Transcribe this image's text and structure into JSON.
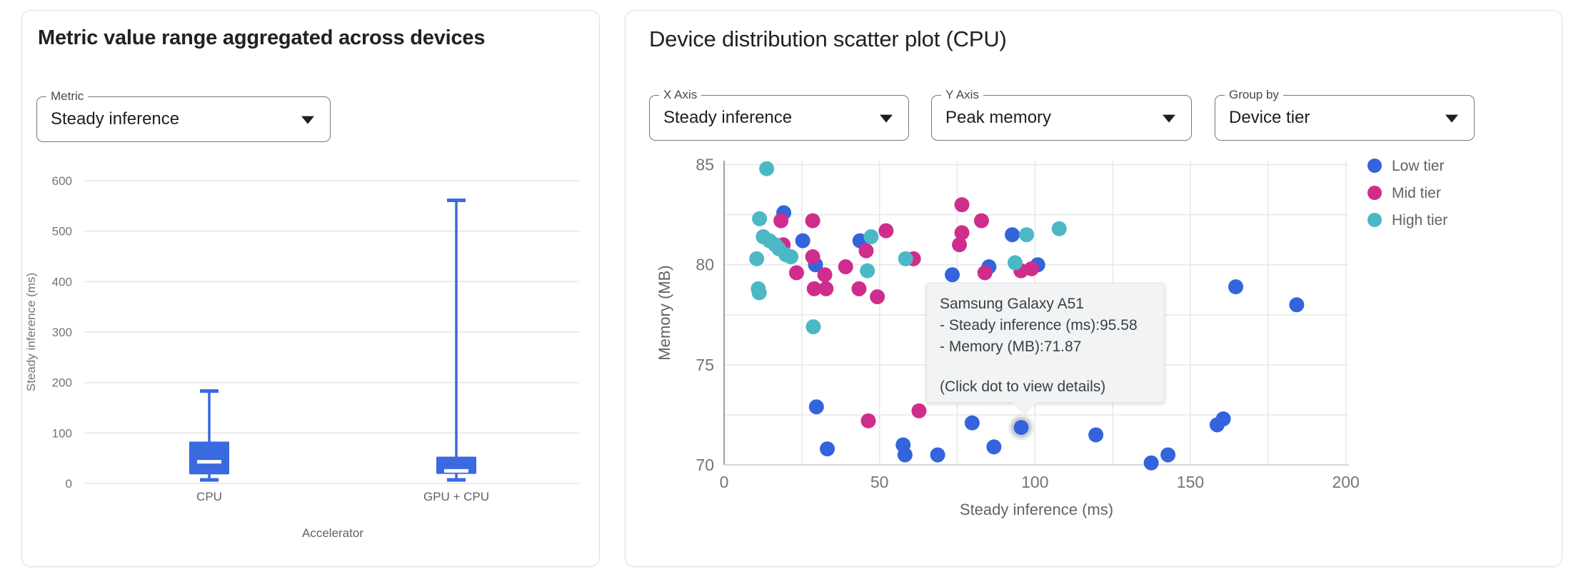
{
  "left_panel": {
    "title": "Metric value range aggregated across devices",
    "metric_select": {
      "label": "Metric",
      "value": "Steady inference"
    },
    "chart_data": {
      "type": "boxplot",
      "categories": [
        "CPU",
        "GPU + CPU"
      ],
      "xlabel": "Accelerator",
      "ylabel": "Steady inference (ms)",
      "yticks": [
        0,
        100,
        200,
        300,
        400,
        500,
        600
      ],
      "ylim": [
        0,
        600
      ],
      "grid": true,
      "box_color": "#3a69e0",
      "series": [
        {
          "category": "CPU",
          "min": 7,
          "q1": 18,
          "median": 43,
          "q3": 83,
          "max": 183
        },
        {
          "category": "GPU + CPU",
          "min": 7,
          "q1": 19,
          "median": 25,
          "q3": 53,
          "max": 561
        }
      ]
    }
  },
  "right_panel": {
    "title": "Device distribution scatter plot (CPU)",
    "x_axis_select": {
      "label": "X Axis",
      "value": "Steady inference"
    },
    "y_axis_select": {
      "label": "Y Axis",
      "value": "Peak memory"
    },
    "group_by_select": {
      "label": "Group by",
      "value": "Device tier"
    },
    "chart_data": {
      "type": "scatter",
      "xlabel": "Steady inference (ms)",
      "ylabel": "Memory (MB)",
      "xticks": [
        0,
        50,
        100,
        150,
        200
      ],
      "yticks": [
        70,
        75,
        80,
        85
      ],
      "xlim": [
        0,
        201
      ],
      "ylim": [
        70,
        85.2
      ],
      "minor_grid_x": 25,
      "minor_grid_y": 2.5,
      "grid": true,
      "legend_position": "right",
      "series": [
        {
          "name": "Low tier",
          "color": "#3464dc",
          "points": [
            [
              19.2,
              82.6
            ],
            [
              25.3,
              81.2
            ],
            [
              43.7,
              81.2
            ],
            [
              29.4,
              80.0
            ],
            [
              92.7,
              81.5
            ],
            [
              100.9,
              80.0
            ],
            [
              85.2,
              79.9
            ],
            [
              73.4,
              79.5
            ],
            [
              164.6,
              78.9
            ],
            [
              184.2,
              78.0
            ],
            [
              29.7,
              72.9
            ],
            [
              33.2,
              70.8
            ],
            [
              57.6,
              71.0
            ],
            [
              58.2,
              70.5
            ],
            [
              68.7,
              70.5
            ],
            [
              79.8,
              72.1
            ],
            [
              95.58,
              71.87
            ],
            [
              86.8,
              70.9
            ],
            [
              119.6,
              71.5
            ],
            [
              137.4,
              70.1
            ],
            [
              142.8,
              70.5
            ],
            [
              158.6,
              72.0
            ],
            [
              160.6,
              72.3
            ]
          ]
        },
        {
          "name": "Mid tier",
          "color": "#cf2d8c",
          "points": [
            [
              18.3,
              82.2
            ],
            [
              28.5,
              82.2
            ],
            [
              19.0,
              81.0
            ],
            [
              28.5,
              80.4
            ],
            [
              23.3,
              79.6
            ],
            [
              32.4,
              79.5
            ],
            [
              29.0,
              78.8
            ],
            [
              32.8,
              78.8
            ],
            [
              39.1,
              79.9
            ],
            [
              45.7,
              80.7
            ],
            [
              52.1,
              81.7
            ],
            [
              43.4,
              78.8
            ],
            [
              49.3,
              78.4
            ],
            [
              60.9,
              80.3
            ],
            [
              76.5,
              83.0
            ],
            [
              82.8,
              82.2
            ],
            [
              76.5,
              81.6
            ],
            [
              75.7,
              81.0
            ],
            [
              83.9,
              79.6
            ],
            [
              95.5,
              79.7
            ],
            [
              98.9,
              79.8
            ],
            [
              46.4,
              72.2
            ],
            [
              62.7,
              72.7
            ]
          ]
        },
        {
          "name": "High tier",
          "color": "#4cb8c5",
          "points": [
            [
              13.7,
              84.8
            ],
            [
              11.4,
              82.3
            ],
            [
              12.6,
              81.4
            ],
            [
              14.6,
              81.2
            ],
            [
              16.4,
              81.0
            ],
            [
              17.6,
              80.8
            ],
            [
              19.9,
              80.5
            ],
            [
              21.5,
              80.4
            ],
            [
              10.5,
              80.3
            ],
            [
              11.0,
              78.8
            ],
            [
              11.3,
              78.6
            ],
            [
              47.3,
              81.4
            ],
            [
              46.1,
              79.7
            ],
            [
              28.7,
              76.9
            ],
            [
              58.4,
              80.3
            ],
            [
              97.3,
              81.5
            ],
            [
              107.8,
              81.8
            ],
            [
              93.6,
              80.1
            ]
          ]
        }
      ],
      "selected_point": {
        "series": "Low tier",
        "x": 95.58,
        "y": 71.87
      }
    },
    "tooltip": {
      "title": "Samsung Galaxy A51",
      "line1": "- Steady inference (ms):95.58",
      "line2": "- Memory (MB):71.87",
      "hint": "(Click dot to view details)"
    }
  }
}
